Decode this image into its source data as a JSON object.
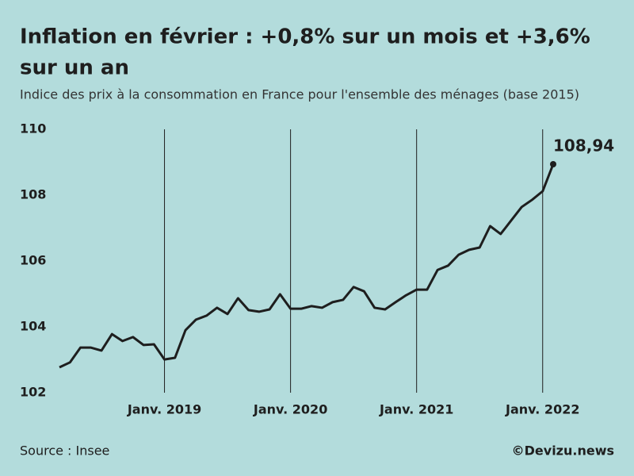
{
  "chart_data": {
    "type": "line",
    "title": "Inflation en février : +0,8% sur un mois et +3,6% sur un an",
    "subtitle": "Indice des prix à la consommation en France pour l'ensemble des ménages (base 2015)",
    "source": "Source : Insee",
    "credit": "©Devizu.news",
    "categories": [
      null,
      null,
      null,
      null,
      null,
      null,
      null,
      null,
      null,
      null,
      "Janv. 2019",
      null,
      null,
      null,
      null,
      null,
      null,
      null,
      null,
      null,
      null,
      null,
      "Janv. 2020",
      null,
      null,
      null,
      null,
      null,
      null,
      null,
      null,
      null,
      null,
      null,
      "Janv. 2021",
      null,
      null,
      null,
      null,
      null,
      null,
      null,
      null,
      null,
      null,
      null,
      "Janv. 2022",
      null
    ],
    "series": [
      {
        "color": "#1e1e1e",
        "values": [
          102.77,
          102.92,
          103.37,
          103.37,
          103.28,
          103.78,
          103.57,
          103.69,
          103.45,
          103.47,
          103.01,
          103.06,
          103.9,
          104.22,
          104.34,
          104.58,
          104.39,
          104.87,
          104.51,
          104.46,
          104.53,
          104.99,
          104.55,
          104.55,
          104.63,
          104.58,
          104.75,
          104.82,
          105.21,
          105.08,
          104.58,
          104.53,
          104.75,
          104.96,
          105.13,
          105.13,
          105.73,
          105.86,
          106.19,
          106.34,
          106.41,
          107.06,
          106.82,
          107.23,
          107.64,
          107.86,
          108.12,
          108.94
        ],
        "value_labels": [
          null,
          null,
          null,
          null,
          null,
          null,
          null,
          null,
          null,
          null,
          null,
          null,
          null,
          null,
          null,
          null,
          null,
          null,
          null,
          null,
          null,
          null,
          null,
          null,
          null,
          null,
          null,
          null,
          null,
          null,
          null,
          null,
          null,
          null,
          null,
          null,
          null,
          null,
          null,
          null,
          null,
          null,
          null,
          null,
          null,
          null,
          null,
          "108,94"
        ]
      }
    ],
    "ylim": [
      102,
      110
    ],
    "yticks": [
      102,
      104,
      106,
      108,
      110
    ],
    "grid": true
  }
}
